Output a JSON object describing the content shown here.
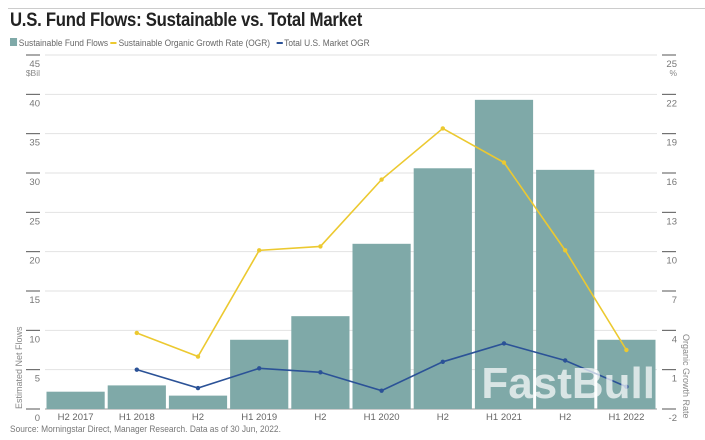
{
  "chart_data": {
    "type": "bar",
    "title": "U.S. Fund Flows: Sustainable vs. Total Market",
    "categories": [
      "H2 2017",
      "H1 2018",
      "H2",
      "H1 2019",
      "H2",
      "H1 2020",
      "H2",
      "H1 2021",
      "H2",
      "H1 2022"
    ],
    "series": [
      {
        "name": "Sustainable Fund Flows",
        "type": "bar",
        "axis": "left",
        "color": "#7fa9a8",
        "values": [
          2.2,
          3.0,
          1.7,
          8.8,
          11.8,
          21.0,
          30.6,
          39.3,
          30.4,
          8.8
        ]
      },
      {
        "name": "Sustainable Organic Growth Rate (OGR)",
        "type": "line",
        "axis": "right",
        "color": "#ecc930",
        "values": [
          null,
          3.8,
          2.0,
          10.1,
          10.4,
          15.5,
          19.4,
          16.8,
          10.1,
          2.5
        ]
      },
      {
        "name": "Total U.S. Market OGR",
        "type": "line",
        "axis": "right",
        "color": "#2b5297",
        "values": [
          null,
          1.0,
          -0.4,
          1.1,
          0.8,
          -0.6,
          1.6,
          3.0,
          1.7,
          -0.3
        ]
      }
    ],
    "left_axis": {
      "label": "Estimated Net Flows",
      "unit": "$Bil",
      "ylim": [
        0,
        45
      ],
      "ticks": [
        "0",
        "5",
        "10",
        "15",
        "20",
        "25",
        "30",
        "35",
        "40",
        "45"
      ]
    },
    "right_axis": {
      "label": "Organic Growth Rate",
      "unit": "%",
      "ylim": [
        -2,
        25
      ],
      "ticks": [
        "-2",
        "1",
        "4",
        "7",
        "10",
        "13",
        "16",
        "19",
        "22",
        "25"
      ]
    },
    "grid": true,
    "legend": "top-left"
  },
  "source": "Source: Morningstar Direct, Manager Research. Data as of 30 Jun, 2022.",
  "watermark": "FastBull"
}
